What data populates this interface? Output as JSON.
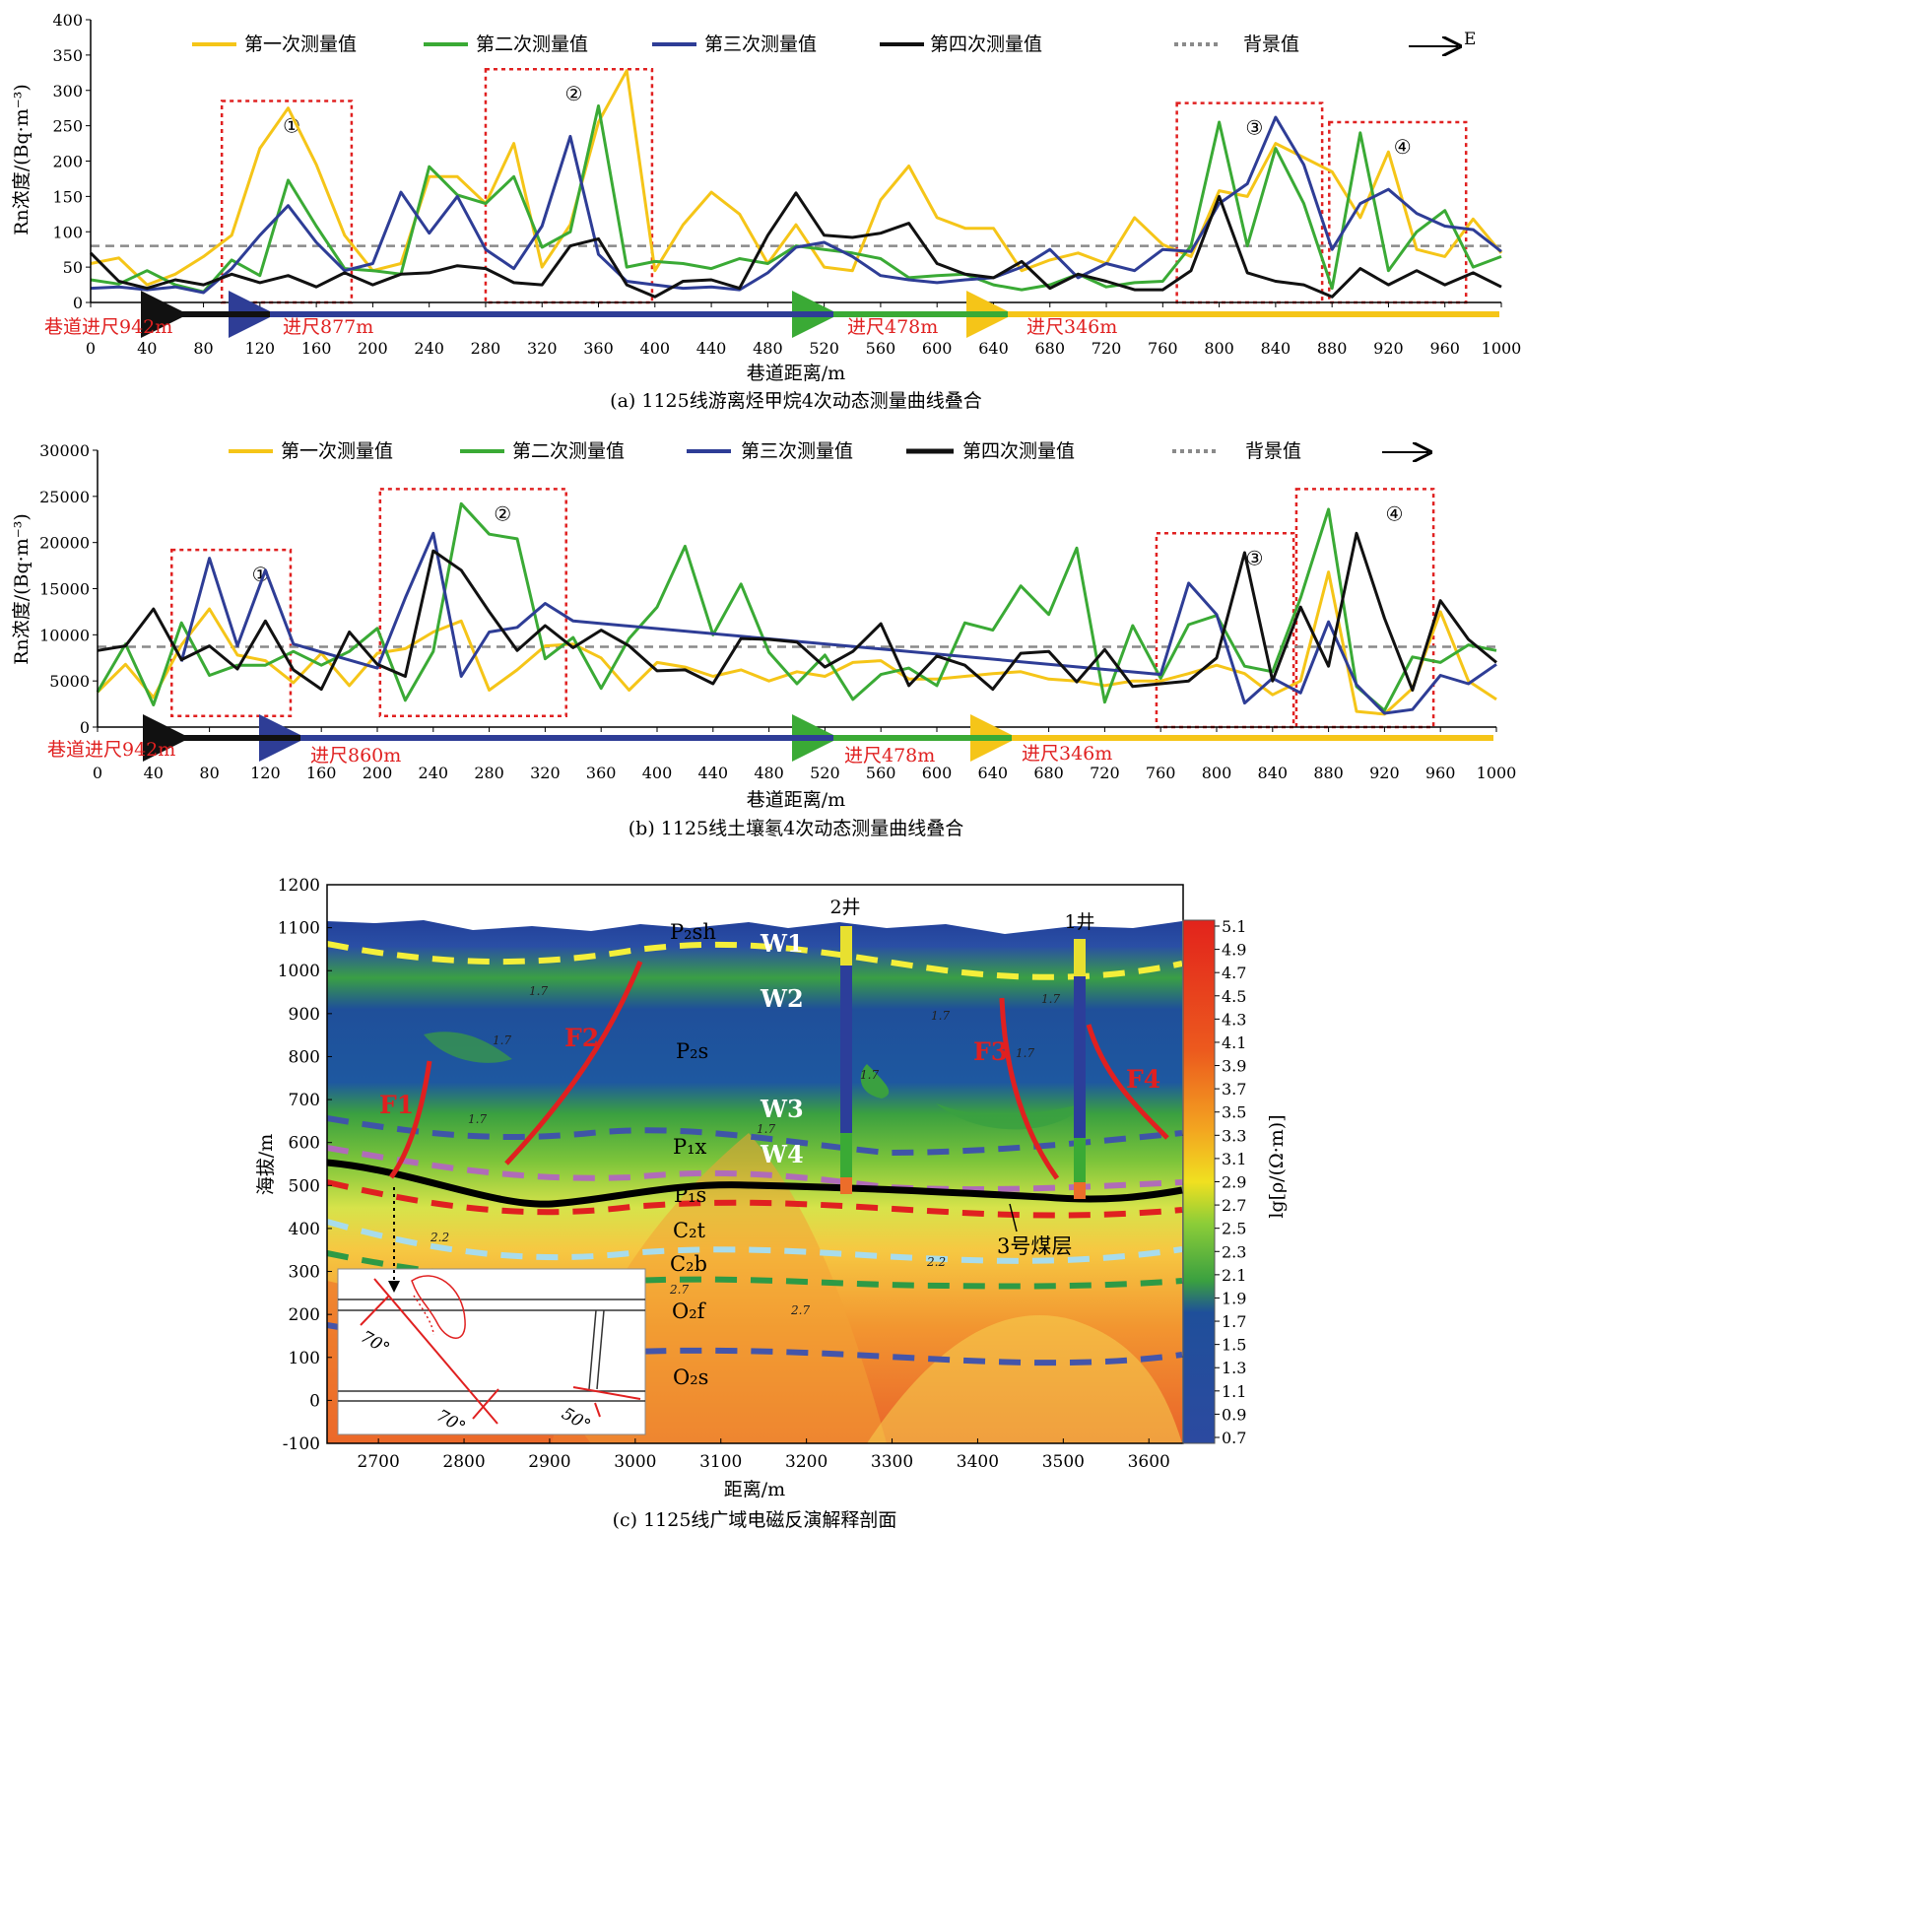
{
  "colors": {
    "first": "#f5c518",
    "second": "#3aaa35",
    "third": "#2e3d96",
    "fourth": "#111111",
    "background_line": "#8a8a8a",
    "highlight_box": "#e02020",
    "advance_text": "#e02020"
  },
  "legend": {
    "first": "第一次测量值",
    "second": "第二次测量值",
    "third": "第三次测量值",
    "fourth": "第四次测量值",
    "background": "背景值",
    "arrow_a": "E"
  },
  "advance_labels": {
    "a": {
      "black": "巷道进尺942m",
      "blue": "进尺877m",
      "green": "进尺478m",
      "yellow": "进尺346m"
    },
    "b": {
      "black": "巷道进尺942m",
      "blue": "进尺860m",
      "green": "进尺478m",
      "yellow": "进尺346m"
    }
  },
  "chart_data": [
    {
      "type": "line",
      "title": "(a) 1125线游离烃甲烷4次动态测量曲线叠合",
      "xlabel": "巷道距离/m",
      "ylabel": "Rn浓度/(Bq·m⁻³)",
      "xlim": [
        0,
        1000
      ],
      "ylim": [
        0,
        400
      ],
      "xticks": [
        "0",
        "40",
        "80",
        "120",
        "160",
        "200",
        "240",
        "280",
        "320",
        "360",
        "400",
        "440",
        "480",
        "520",
        "560",
        "600",
        "640",
        "680",
        "720",
        "760",
        "800",
        "840",
        "880",
        "920",
        "960",
        "1000"
      ],
      "yticks": [
        "0",
        "50",
        "100",
        "150",
        "200",
        "250",
        "300",
        "350",
        "400"
      ],
      "background_value": 80,
      "regions": [
        {
          "label": "①",
          "x": [
            93,
            185
          ],
          "y": [
            0,
            285
          ]
        },
        {
          "label": "②",
          "x": [
            280,
            398
          ],
          "y": [
            0,
            330
          ]
        },
        {
          "label": "③",
          "x": [
            770,
            873
          ],
          "y": [
            0,
            282
          ]
        },
        {
          "label": "④",
          "x": [
            878,
            975
          ],
          "y": [
            0,
            255
          ]
        }
      ],
      "series": [
        {
          "name": "第一次测量值",
          "color": "first",
          "x": [
            0,
            20,
            40,
            60,
            80,
            100,
            120,
            140,
            160,
            180,
            200,
            220,
            240,
            260,
            280,
            300,
            320,
            340,
            360,
            380,
            400,
            420,
            440,
            460,
            480,
            500,
            520,
            540,
            560,
            580,
            600,
            620,
            640,
            660,
            680,
            700,
            720,
            740,
            760,
            780,
            800,
            820,
            840,
            860,
            880,
            900,
            920,
            940,
            960,
            980,
            1000
          ],
          "y": [
            55,
            63,
            25,
            40,
            65,
            95,
            218,
            275,
            195,
            95,
            45,
            55,
            178,
            178,
            140,
            225,
            50,
            110,
            255,
            328,
            45,
            110,
            156,
            125,
            55,
            110,
            50,
            45,
            145,
            193,
            120,
            105,
            105,
            45,
            60,
            70,
            55,
            120,
            82,
            65,
            158,
            150,
            225,
            205,
            185,
            120,
            213,
            75,
            65,
            118,
            70
          ]
        },
        {
          "name": "第二次测量值",
          "color": "second",
          "x": [
            0,
            20,
            40,
            60,
            80,
            100,
            120,
            140,
            160,
            180,
            200,
            220,
            240,
            260,
            280,
            300,
            320,
            340,
            360,
            380,
            400,
            420,
            440,
            460,
            480,
            500,
            520,
            540,
            560,
            580,
            600,
            620,
            640,
            660,
            680,
            700,
            720,
            740,
            760,
            780,
            800,
            820,
            840,
            860,
            880,
            900,
            920,
            940,
            960,
            980,
            1000
          ],
          "y": [
            32,
            26,
            45,
            25,
            15,
            60,
            38,
            173,
            108,
            48,
            45,
            40,
            192,
            152,
            140,
            178,
            78,
            100,
            278,
            50,
            58,
            55,
            48,
            62,
            55,
            80,
            75,
            70,
            62,
            35,
            38,
            40,
            25,
            18,
            25,
            40,
            22,
            28,
            30,
            80,
            255,
            80,
            218,
            140,
            20,
            240,
            45,
            100,
            130,
            50,
            65
          ]
        },
        {
          "name": "第三次测量值",
          "color": "third",
          "x": [
            0,
            20,
            40,
            60,
            80,
            100,
            120,
            140,
            160,
            180,
            200,
            220,
            240,
            260,
            280,
            300,
            320,
            340,
            360,
            380,
            400,
            420,
            440,
            460,
            480,
            500,
            520,
            540,
            560,
            580,
            600,
            620,
            640,
            660,
            680,
            700,
            720,
            740,
            760,
            780,
            800,
            820,
            840,
            860,
            880,
            900,
            920,
            940,
            960,
            980,
            1000
          ],
          "y": [
            20,
            22,
            18,
            22,
            14,
            48,
            95,
            137,
            85,
            45,
            55,
            156,
            98,
            150,
            75,
            48,
            108,
            235,
            68,
            30,
            25,
            20,
            22,
            18,
            42,
            78,
            85,
            65,
            38,
            32,
            28,
            32,
            35,
            50,
            75,
            35,
            55,
            45,
            75,
            72,
            140,
            168,
            262,
            195,
            75,
            140,
            160,
            126,
            108,
            103,
            72
          ]
        },
        {
          "name": "第四次测量值",
          "color": "fourth",
          "x": [
            0,
            20,
            40,
            60,
            80,
            100,
            120,
            140,
            160,
            180,
            200,
            220,
            240,
            260,
            280,
            300,
            320,
            340,
            360,
            380,
            400,
            420,
            440,
            460,
            480,
            500,
            520,
            540,
            560,
            580,
            600,
            620,
            640,
            660,
            680,
            700,
            720,
            740,
            760,
            780,
            800,
            820,
            840,
            860,
            880,
            900,
            920,
            940,
            960,
            980,
            1000
          ],
          "y": [
            70,
            30,
            20,
            32,
            25,
            40,
            28,
            38,
            22,
            42,
            25,
            40,
            42,
            52,
            48,
            28,
            25,
            80,
            90,
            25,
            8,
            30,
            32,
            20,
            95,
            155,
            95,
            92,
            98,
            112,
            55,
            40,
            35,
            58,
            20,
            40,
            30,
            18,
            18,
            45,
            150,
            42,
            30,
            25,
            8,
            48,
            25,
            45,
            25,
            42,
            22
          ]
        }
      ]
    },
    {
      "type": "line",
      "title": "(b) 1125线土壤氡4次动态测量曲线叠合",
      "xlabel": "巷道距离/m",
      "ylabel": "Rn浓度/(Bq·m⁻³)",
      "xlim": [
        0,
        1000
      ],
      "ylim": [
        0,
        30000
      ],
      "xticks": [
        "0",
        "40",
        "80",
        "120",
        "160",
        "200",
        "240",
        "280",
        "320",
        "360",
        "400",
        "440",
        "480",
        "520",
        "560",
        "600",
        "640",
        "680",
        "720",
        "760",
        "800",
        "840",
        "880",
        "920",
        "960",
        "1000"
      ],
      "yticks": [
        "0",
        "5000",
        "10000",
        "15000",
        "20000",
        "25000",
        "30000"
      ],
      "background_value": 8700,
      "regions": [
        {
          "label": "①",
          "x": [
            53,
            138
          ],
          "y": [
            1200,
            19200
          ]
        },
        {
          "label": "②",
          "x": [
            202,
            335
          ],
          "y": [
            1200,
            25800
          ]
        },
        {
          "label": "③",
          "x": [
            757,
            855
          ],
          "y": [
            0,
            21000
          ]
        },
        {
          "label": "④",
          "x": [
            857,
            955
          ],
          "y": [
            0,
            25800
          ]
        }
      ],
      "series": [
        {
          "name": "第一次测量值",
          "color": "first",
          "x": [
            0,
            20,
            40,
            60,
            80,
            100,
            120,
            140,
            160,
            180,
            200,
            220,
            240,
            260,
            280,
            300,
            320,
            340,
            360,
            380,
            400,
            420,
            440,
            460,
            480,
            500,
            520,
            540,
            560,
            580,
            600,
            620,
            640,
            660,
            680,
            700,
            720,
            740,
            760,
            780,
            800,
            820,
            840,
            860,
            880,
            900,
            920,
            940,
            960,
            980,
            1000
          ],
          "y": [
            3800,
            6800,
            3200,
            8900,
            12800,
            7800,
            7200,
            4800,
            8000,
            4500,
            8000,
            8500,
            10300,
            11500,
            4000,
            6200,
            8800,
            9000,
            7500,
            4000,
            7000,
            6500,
            5500,
            6200,
            5000,
            6000,
            5500,
            7000,
            7200,
            5200,
            5200,
            5500,
            5800,
            6000,
            5200,
            5000,
            4500,
            5000,
            5000,
            5800,
            6700,
            5800,
            3500,
            5000,
            16800,
            1700,
            1400,
            4200,
            12500,
            5000,
            3000
          ]
        },
        {
          "name": "第二次测量值",
          "color": "second",
          "x": [
            0,
            20,
            40,
            60,
            80,
            100,
            120,
            140,
            160,
            180,
            200,
            220,
            240,
            260,
            280,
            300,
            320,
            340,
            360,
            380,
            400,
            420,
            440,
            460,
            480,
            500,
            520,
            540,
            560,
            580,
            600,
            620,
            640,
            660,
            680,
            700,
            720,
            740,
            760,
            780,
            800,
            820,
            840,
            860,
            880,
            900,
            920,
            940,
            960,
            980,
            1000
          ],
          "y": [
            3800,
            9000,
            2400,
            11300,
            5600,
            6700,
            6700,
            8200,
            6700,
            8200,
            10700,
            2900,
            8200,
            24200,
            20900,
            20400,
            7400,
            9700,
            4200,
            9600,
            13000,
            19600,
            10000,
            15500,
            8100,
            4700,
            7800,
            3000,
            5700,
            6400,
            4500,
            11300,
            10500,
            15300,
            12200,
            19400,
            2700,
            11000,
            5300,
            11100,
            12100,
            6600,
            6000,
            14000,
            23600,
            4400,
            1800,
            7600,
            7000,
            8900,
            8300
          ]
        },
        {
          "name": "第三次测量值",
          "color": "third",
          "x": [
            60,
            80,
            100,
            120,
            140,
            200,
            220,
            240,
            260,
            280,
            300,
            320,
            340,
            760,
            780,
            800,
            820,
            840,
            860,
            880,
            900,
            920,
            940,
            960,
            980,
            1000
          ],
          "y": [
            7100,
            18300,
            8800,
            17000,
            9000,
            6400,
            14000,
            21000,
            5500,
            10300,
            10800,
            13400,
            11500,
            5700,
            15600,
            12200,
            2600,
            5300,
            3700,
            11400,
            4600,
            1500,
            1900,
            5600,
            4700,
            6800
          ]
        },
        {
          "name": "第四次测量值",
          "color": "fourth",
          "x": [
            0,
            20,
            40,
            60,
            80,
            100,
            120,
            140,
            160,
            180,
            200,
            220,
            240,
            260,
            280,
            300,
            320,
            340,
            360,
            380,
            400,
            420,
            440,
            460,
            480,
            500,
            520,
            540,
            560,
            580,
            600,
            620,
            640,
            660,
            680,
            700,
            720,
            740,
            760,
            780,
            800,
            820,
            840,
            860,
            880,
            900,
            920,
            940,
            960,
            980,
            1000
          ],
          "y": [
            8300,
            8800,
            12800,
            7300,
            8800,
            6300,
            11500,
            6200,
            4100,
            10300,
            6800,
            5500,
            19100,
            17000,
            12500,
            8300,
            11000,
            8600,
            10500,
            8800,
            6100,
            6200,
            4700,
            9600,
            9500,
            9200,
            6500,
            8200,
            11200,
            4500,
            7700,
            6700,
            4100,
            8000,
            8200,
            4900,
            8400,
            4400,
            4700,
            5000,
            7500,
            18900,
            5000,
            13000,
            6600,
            21000,
            11800,
            4000,
            13700,
            9500,
            7000
          ]
        }
      ]
    },
    {
      "type": "heatmap",
      "title": "(c) 1125线广域电磁反演解释剖面",
      "xlabel": "距离/m",
      "ylabel": "海拔/m",
      "colorbar_label": "lg[ρ/(Ω·m)]",
      "xlim": [
        2640,
        3640
      ],
      "ylim": [
        -100,
        1200
      ],
      "xticks": [
        "2700",
        "2800",
        "2900",
        "3000",
        "3100",
        "3200",
        "3300",
        "3400",
        "3500",
        "3600"
      ],
      "yticks": [
        "-100",
        "0",
        "100",
        "200",
        "300",
        "400",
        "500",
        "600",
        "700",
        "800",
        "900",
        "1000",
        "1100",
        "1200"
      ],
      "colorbar_ticks": [
        "0.7",
        "0.9",
        "1.1",
        "1.3",
        "1.5",
        "1.7",
        "1.9",
        "2.1",
        "2.3",
        "2.5",
        "2.7",
        "2.9",
        "3.1",
        "3.3",
        "3.5",
        "3.7",
        "3.9",
        "4.1",
        "4.3",
        "4.5",
        "4.7",
        "4.9",
        "5.1"
      ],
      "formations": [
        "P₂sh",
        "P₂s",
        "P₁x",
        "P₁s",
        "C₂t",
        "C₂b",
        "O₂f",
        "O₂s"
      ],
      "aquifers": [
        "W1",
        "W2",
        "W3",
        "W4"
      ],
      "faults": [
        "F1",
        "F2",
        "F3",
        "F4"
      ],
      "wells": [
        "2井",
        "1井"
      ],
      "coal_seam": "3号煤层",
      "contour_labels": [
        "1.7",
        "1.7",
        "1.7",
        "1.7",
        "1.7",
        "1.7",
        "1.7",
        "1.7",
        "2.2",
        "2.2",
        "2.7",
        "2.7"
      ],
      "inset_dips": [
        "70°",
        "70°",
        "50°"
      ]
    }
  ]
}
